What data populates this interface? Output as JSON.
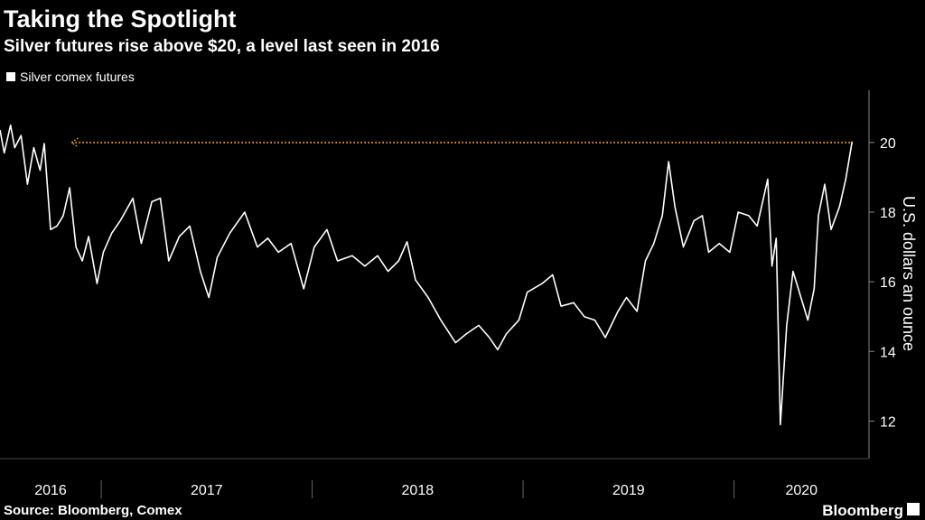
{
  "chart_data": {
    "type": "line",
    "title": "Taking the Spotlight",
    "subtitle": "Silver futures rise above $20, a level last seen in 2016",
    "ylabel": "U.S. dollars an ounce",
    "source": "Source: Bloomberg, Comex",
    "brand": "Bloomberg",
    "x": [
      2016.52,
      2016.54,
      2016.57,
      2016.59,
      2016.62,
      2016.65,
      2016.68,
      2016.71,
      2016.73,
      2016.76,
      2016.79,
      2016.82,
      2016.85,
      2016.88,
      2016.91,
      2016.94,
      2016.98,
      2017.01,
      2017.05,
      2017.09,
      2017.15,
      2017.19,
      2017.24,
      2017.28,
      2017.32,
      2017.37,
      2017.42,
      2017.47,
      2017.51,
      2017.55,
      2017.61,
      2017.68,
      2017.74,
      2017.79,
      2017.84,
      2017.9,
      2017.96,
      2018.01,
      2018.07,
      2018.12,
      2018.19,
      2018.25,
      2018.31,
      2018.36,
      2018.41,
      2018.45,
      2018.49,
      2018.55,
      2018.61,
      2018.68,
      2018.73,
      2018.79,
      2018.84,
      2018.88,
      2018.92,
      2018.98,
      2019.02,
      2019.09,
      2019.14,
      2019.18,
      2019.24,
      2019.29,
      2019.34,
      2019.39,
      2019.45,
      2019.49,
      2019.54,
      2019.58,
      2019.62,
      2019.66,
      2019.69,
      2019.72,
      2019.76,
      2019.81,
      2019.85,
      2019.88,
      2019.93,
      2019.98,
      2020.02,
      2020.07,
      2020.11,
      2020.16,
      2020.18,
      2020.2,
      2020.22,
      2020.25,
      2020.28,
      2020.33,
      2020.35,
      2020.38,
      2020.4,
      2020.43,
      2020.46,
      2020.5,
      2020.53,
      2020.56
    ],
    "series": [
      {
        "name": "Silver comex futures",
        "color": "#ffffff",
        "values": [
          20.36,
          19.7,
          20.5,
          19.85,
          20.2,
          18.8,
          19.85,
          19.2,
          19.97,
          17.5,
          17.6,
          17.9,
          18.7,
          17.0,
          16.6,
          17.3,
          15.95,
          16.85,
          17.4,
          17.75,
          18.4,
          17.1,
          18.3,
          18.4,
          16.6,
          17.3,
          17.6,
          16.3,
          15.55,
          16.7,
          17.4,
          18.0,
          17.0,
          17.25,
          16.85,
          17.1,
          15.8,
          17.0,
          17.5,
          16.6,
          16.75,
          16.45,
          16.75,
          16.3,
          16.6,
          17.15,
          16.05,
          15.55,
          14.9,
          14.25,
          14.5,
          14.75,
          14.4,
          14.05,
          14.5,
          14.9,
          15.7,
          15.95,
          16.2,
          15.3,
          15.4,
          15.0,
          14.9,
          14.4,
          15.15,
          15.55,
          15.15,
          16.6,
          17.1,
          17.9,
          19.45,
          18.15,
          17.0,
          17.75,
          17.9,
          16.85,
          17.1,
          16.85,
          18.0,
          17.9,
          17.6,
          18.95,
          16.45,
          17.25,
          11.9,
          14.75,
          16.3,
          15.3,
          14.9,
          15.8,
          17.9,
          18.8,
          17.5,
          18.15,
          18.95,
          20.03
        ]
      }
    ],
    "reference": {
      "y": 20,
      "x": [
        2016.86,
        2020.56
      ],
      "color": "#f5a623"
    },
    "xlim": [
      2016.52,
      2020.64
    ],
    "xticks": [
      2016,
      2017,
      2018,
      2019,
      2020
    ],
    "ylim": [
      11,
      21.5
    ],
    "yticks": [
      12,
      14,
      16,
      18,
      20
    ]
  }
}
